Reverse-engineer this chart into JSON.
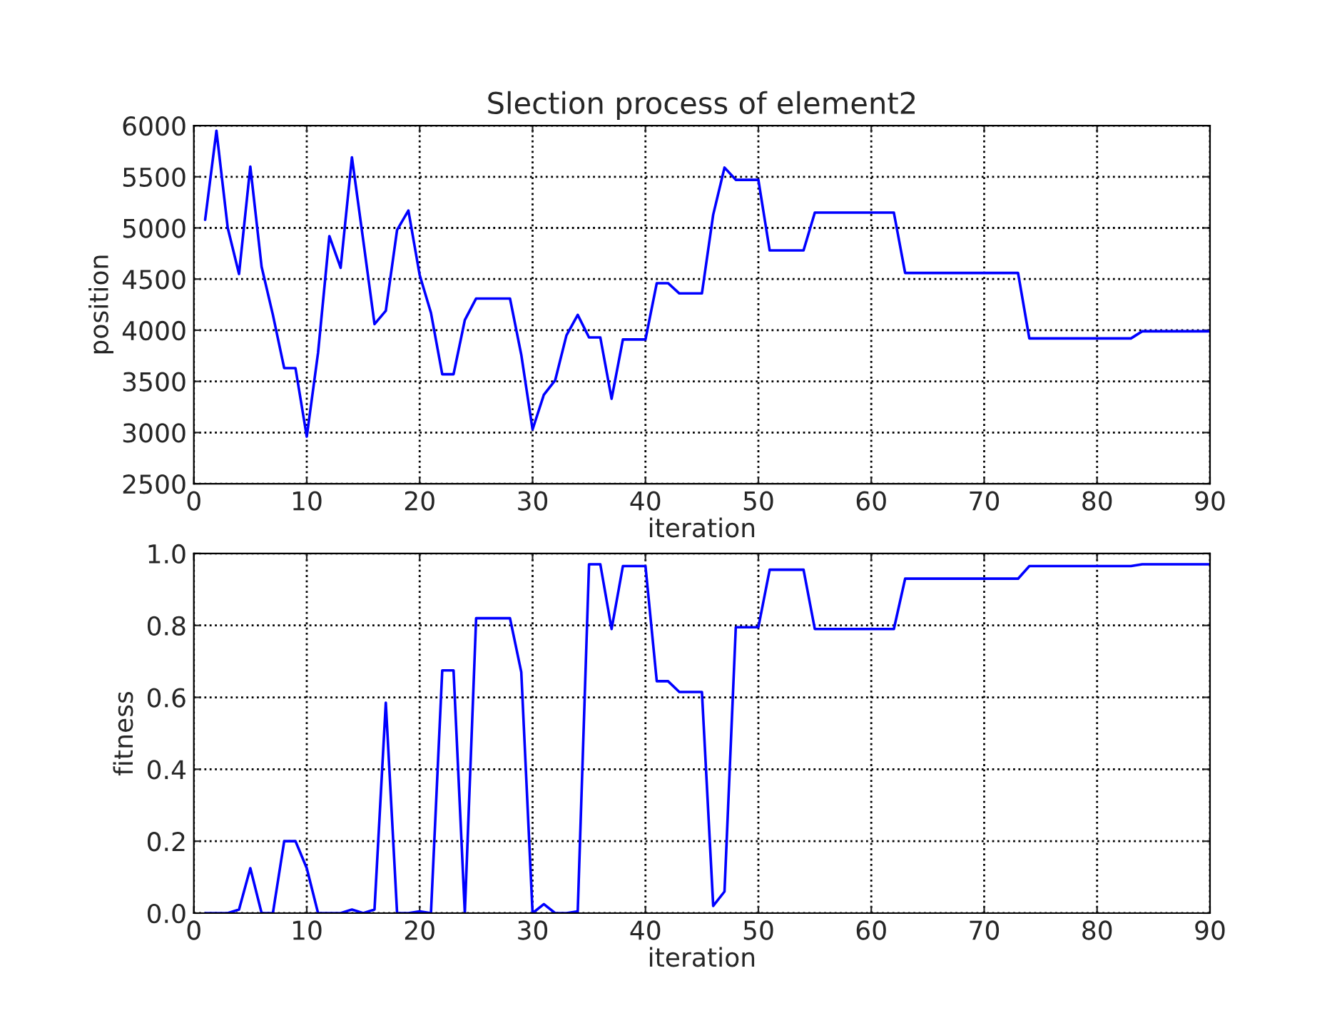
{
  "chart_data": [
    {
      "type": "line",
      "title": "Slection process of element2",
      "xlabel": "iteration",
      "ylabel": "position",
      "x": [
        1,
        2,
        3,
        4,
        5,
        6,
        7,
        8,
        9,
        10,
        11,
        12,
        13,
        14,
        15,
        16,
        17,
        18,
        19,
        20,
        21,
        22,
        23,
        24,
        25,
        26,
        27,
        28,
        29,
        30,
        31,
        32,
        33,
        34,
        35,
        36,
        37,
        38,
        39,
        40,
        41,
        42,
        43,
        44,
        45,
        46,
        47,
        48,
        49,
        50,
        51,
        52,
        53,
        54,
        55,
        56,
        57,
        58,
        59,
        60,
        61,
        62,
        63,
        64,
        65,
        66,
        67,
        68,
        69,
        70,
        71,
        72,
        73,
        74,
        75,
        76,
        77,
        78,
        79,
        80,
        81,
        82,
        83,
        84,
        85,
        86,
        87,
        88,
        89,
        90
      ],
      "series": [
        {
          "color": "#0000ff",
          "values": [
            5080,
            5950,
            5000,
            4550,
            5600,
            4620,
            4150,
            3630,
            3630,
            2960,
            3780,
            4920,
            4610,
            5690,
            4880,
            4060,
            4190,
            4980,
            5170,
            4540,
            4170,
            3570,
            3570,
            4100,
            4310,
            4310,
            4310,
            4310,
            3760,
            3030,
            3370,
            3510,
            3950,
            4150,
            3930,
            3930,
            3330,
            3910,
            3910,
            3910,
            4460,
            4460,
            4360,
            4360,
            4360,
            5130,
            5590,
            5470,
            5470,
            5470,
            4780,
            4780,
            4780,
            4780,
            5150,
            5150,
            5150,
            5150,
            5150,
            5150,
            5150,
            5150,
            4560,
            4560,
            4560,
            4560,
            4560,
            4560,
            4560,
            4560,
            4560,
            4560,
            4560,
            3920,
            3920,
            3920,
            3920,
            3920,
            3920,
            3920,
            3920,
            3920,
            3920,
            3990,
            3990,
            3990,
            3990,
            3990,
            3990,
            3990
          ]
        }
      ],
      "xlim": [
        0,
        90
      ],
      "xticks": [
        0,
        10,
        20,
        30,
        40,
        50,
        60,
        70,
        80,
        90
      ],
      "ylim": [
        2500,
        6000
      ],
      "yticks": [
        2500,
        3000,
        3500,
        4000,
        4500,
        5000,
        5500,
        6000
      ],
      "grid": true,
      "marker": "none",
      "line_style": "solid"
    },
    {
      "type": "line",
      "xlabel": "iteration",
      "ylabel": "fitness",
      "x": [
        1,
        2,
        3,
        4,
        5,
        6,
        7,
        8,
        9,
        10,
        11,
        12,
        13,
        14,
        15,
        16,
        17,
        18,
        19,
        20,
        21,
        22,
        23,
        24,
        25,
        26,
        27,
        28,
        29,
        30,
        31,
        32,
        33,
        34,
        35,
        36,
        37,
        38,
        39,
        40,
        41,
        42,
        43,
        44,
        45,
        46,
        47,
        48,
        49,
        50,
        51,
        52,
        53,
        54,
        55,
        56,
        57,
        58,
        59,
        60,
        61,
        62,
        63,
        64,
        65,
        66,
        67,
        68,
        69,
        70,
        71,
        72,
        73,
        74,
        75,
        76,
        77,
        78,
        79,
        80,
        81,
        82,
        83,
        84,
        85,
        86,
        87,
        88,
        89,
        90
      ],
      "series": [
        {
          "color": "#0000ff",
          "values": [
            0,
            0,
            0,
            0.01,
            0.125,
            0,
            0,
            0.2,
            0.2,
            0.125,
            0,
            0,
            0,
            0.01,
            0,
            0.01,
            0.585,
            0,
            0,
            0.005,
            0,
            0.675,
            0.675,
            0,
            0.82,
            0.82,
            0.82,
            0.82,
            0.67,
            0,
            0.025,
            0,
            0,
            0.005,
            0.97,
            0.97,
            0.79,
            0.965,
            0.965,
            0.965,
            0.645,
            0.645,
            0.615,
            0.615,
            0.615,
            0.02,
            0.06,
            0.795,
            0.795,
            0.795,
            0.955,
            0.955,
            0.955,
            0.955,
            0.79,
            0.79,
            0.79,
            0.79,
            0.79,
            0.79,
            0.79,
            0.79,
            0.93,
            0.93,
            0.93,
            0.93,
            0.93,
            0.93,
            0.93,
            0.93,
            0.93,
            0.93,
            0.93,
            0.965,
            0.965,
            0.965,
            0.965,
            0.965,
            0.965,
            0.965,
            0.965,
            0.965,
            0.965,
            0.97,
            0.97,
            0.97,
            0.97,
            0.97,
            0.97,
            0.97
          ]
        }
      ],
      "xlim": [
        0,
        90
      ],
      "xticks": [
        0,
        10,
        20,
        30,
        40,
        50,
        60,
        70,
        80,
        90
      ],
      "ylim": [
        0,
        1.0
      ],
      "yticks": [
        {
          "value": 0,
          "label": "0.0"
        },
        {
          "value": 0.2,
          "label": "0.2"
        },
        {
          "value": 0.4,
          "label": "0.4"
        },
        {
          "value": 0.6,
          "label": "0.6"
        },
        {
          "value": 0.8,
          "label": "0.8"
        },
        {
          "value": 1.0,
          "label": "1.0"
        }
      ],
      "grid": true,
      "marker": "none",
      "line_style": "solid"
    }
  ]
}
